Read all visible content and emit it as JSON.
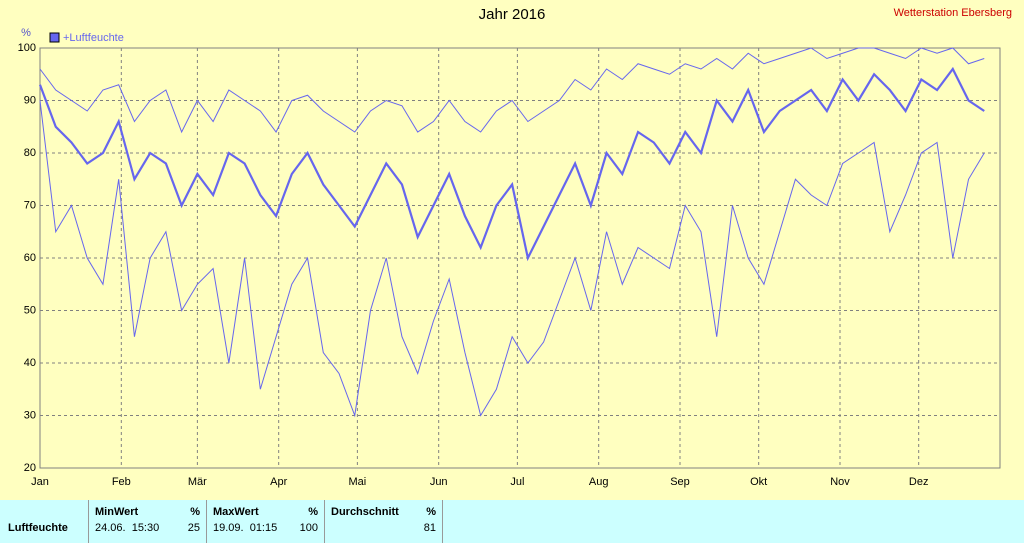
{
  "chart_data": {
    "type": "line",
    "title": "Jahr 2016",
    "station": "Wetterstation Ebersberg",
    "ylabel": "%",
    "xlim": [
      0,
      366
    ],
    "xticks": [
      {
        "value": 0,
        "label": "Jan"
      },
      {
        "value": 31,
        "label": "Feb"
      },
      {
        "value": 60,
        "label": "Mär"
      },
      {
        "value": 91,
        "label": "Apr"
      },
      {
        "value": 121,
        "label": "Mai"
      },
      {
        "value": 152,
        "label": "Jun"
      },
      {
        "value": 182,
        "label": "Jul"
      },
      {
        "value": 213,
        "label": "Aug"
      },
      {
        "value": 244,
        "label": "Sep"
      },
      {
        "value": 274,
        "label": "Okt"
      },
      {
        "value": 305,
        "label": "Nov"
      },
      {
        "value": 335,
        "label": "Dez"
      }
    ],
    "ylim": [
      20,
      100
    ],
    "yticks": [
      20,
      30,
      40,
      50,
      60,
      70,
      80,
      90,
      100
    ],
    "grid": true,
    "x": [
      0,
      6,
      12,
      18,
      24,
      30,
      36,
      42,
      48,
      54,
      60,
      66,
      72,
      78,
      84,
      90,
      96,
      102,
      108,
      114,
      120,
      126,
      132,
      138,
      144,
      150,
      156,
      162,
      168,
      174,
      180,
      186,
      192,
      198,
      204,
      210,
      216,
      222,
      228,
      234,
      240,
      246,
      252,
      258,
      264,
      270,
      276,
      282,
      288,
      294,
      300,
      306,
      312,
      318,
      324,
      330,
      336,
      342,
      348,
      354,
      360
    ],
    "series": [
      {
        "name": "+Luftfeuchte",
        "color": "#6666ee",
        "values": [
          93,
          85,
          82,
          78,
          80,
          86,
          75,
          80,
          78,
          70,
          76,
          72,
          80,
          78,
          72,
          68,
          76,
          80,
          74,
          70,
          66,
          72,
          78,
          74,
          64,
          70,
          76,
          68,
          62,
          70,
          74,
          60,
          66,
          72,
          78,
          70,
          80,
          76,
          84,
          82,
          78,
          84,
          80,
          90,
          86,
          92,
          84,
          88,
          90,
          92,
          88,
          94,
          90,
          95,
          92,
          88,
          94,
          92,
          96,
          90,
          88
        ],
        "lows": [
          90,
          65,
          70,
          60,
          55,
          75,
          45,
          60,
          65,
          50,
          55,
          58,
          40,
          60,
          35,
          45,
          55,
          60,
          42,
          38,
          30,
          50,
          60,
          45,
          38,
          48,
          56,
          42,
          30,
          35,
          45,
          40,
          44,
          52,
          60,
          50,
          65,
          55,
          62,
          60,
          58,
          70,
          65,
          45,
          70,
          60,
          55,
          65,
          75,
          72,
          70,
          78,
          80,
          82,
          65,
          72,
          80,
          82,
          60,
          75,
          80
        ],
        "highs": [
          96,
          92,
          90,
          88,
          92,
          93,
          86,
          90,
          92,
          84,
          90,
          86,
          92,
          90,
          88,
          84,
          90,
          91,
          88,
          86,
          84,
          88,
          90,
          89,
          84,
          86,
          90,
          86,
          84,
          88,
          90,
          86,
          88,
          90,
          94,
          92,
          96,
          94,
          97,
          96,
          95,
          97,
          96,
          98,
          96,
          99,
          97,
          98,
          99,
          100,
          98,
          99,
          100,
          100,
          99,
          98,
          100,
          99,
          100,
          97,
          98
        ]
      }
    ]
  },
  "table": {
    "headers": [
      "MinWert",
      "%",
      "MaxWert",
      "%",
      "Durchschnitt",
      "%"
    ],
    "rows": [
      [
        "Luftfeuchte",
        "24.06.  15:30",
        "25",
        "19.09.  01:15",
        "100",
        "81"
      ]
    ]
  }
}
